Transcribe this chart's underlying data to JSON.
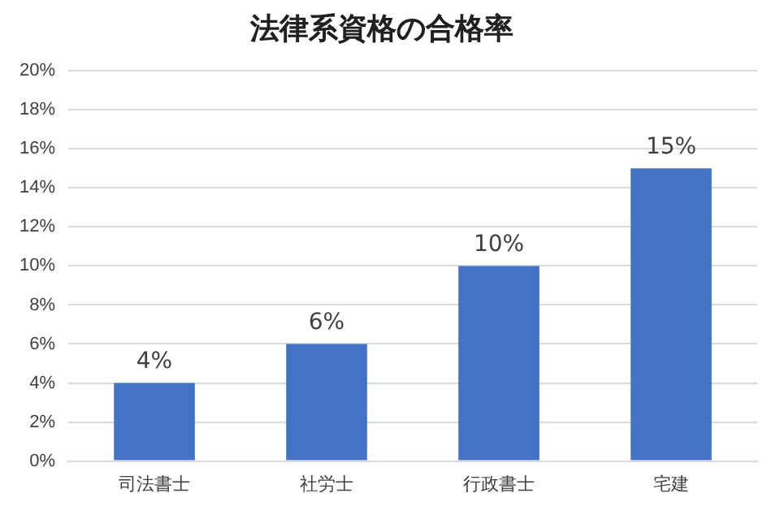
{
  "chart_data": {
    "type": "bar",
    "title": "法律系資格の合格率",
    "categories": [
      "司法書士",
      "社労士",
      "行政書士",
      "宅建"
    ],
    "values": [
      4,
      6,
      10,
      15
    ],
    "color": "#4472c4",
    "value_labels": [
      "4%",
      "6%",
      "10%",
      "15%"
    ],
    "ylim": [
      0,
      20
    ],
    "yticks": [
      {
        "value": 0,
        "label": "0%"
      },
      {
        "value": 2,
        "label": "2%"
      },
      {
        "value": 4,
        "label": "4%"
      },
      {
        "value": 6,
        "label": "6%"
      },
      {
        "value": 8,
        "label": "8%"
      },
      {
        "value": 10,
        "label": "10%"
      },
      {
        "value": 12,
        "label": "12%"
      },
      {
        "value": 14,
        "label": "14%"
      },
      {
        "value": 16,
        "label": "16%"
      },
      {
        "value": 18,
        "label": "18%"
      },
      {
        "value": 20,
        "label": "20%"
      }
    ],
    "grid": "y",
    "legend": false
  }
}
